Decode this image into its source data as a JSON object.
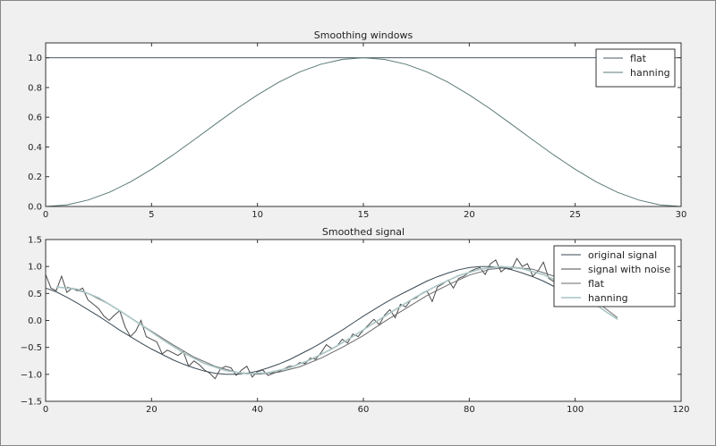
{
  "chart_data": [
    {
      "type": "line",
      "title": "Smoothing windows",
      "xlabel": "",
      "ylabel": "",
      "xlim": [
        0,
        30
      ],
      "ylim": [
        0.0,
        1.1
      ],
      "xticks": [
        0,
        5,
        10,
        15,
        20,
        25,
        30
      ],
      "xtick_labels": [
        "0",
        "5",
        "10",
        "15",
        "20",
        "25",
        "30"
      ],
      "yticks": [
        0.0,
        0.2,
        0.4,
        0.6,
        0.8,
        1.0
      ],
      "ytick_labels": [
        "0.0",
        "0.2",
        "0.4",
        "0.6",
        "0.8",
        "1.0"
      ],
      "grid": false,
      "legend_position": "top-right",
      "series": [
        {
          "name": "flat",
          "color": "#4a5a66",
          "x": [
            0,
            30
          ],
          "y": [
            1.0,
            1.0
          ]
        },
        {
          "name": "hanning",
          "color": "#5a7a78",
          "x": [
            0,
            1,
            2,
            3,
            4,
            5,
            6,
            7,
            8,
            9,
            10,
            11,
            12,
            13,
            14,
            15,
            16,
            17,
            18,
            19,
            20,
            21,
            22,
            23,
            24,
            25,
            26,
            27,
            28,
            29,
            30
          ],
          "y": [
            0.0,
            0.011,
            0.043,
            0.095,
            0.165,
            0.25,
            0.345,
            0.448,
            0.552,
            0.655,
            0.75,
            0.835,
            0.905,
            0.957,
            0.989,
            1.0,
            0.989,
            0.957,
            0.905,
            0.835,
            0.75,
            0.655,
            0.552,
            0.448,
            0.345,
            0.25,
            0.165,
            0.095,
            0.043,
            0.011,
            0.0
          ]
        }
      ]
    },
    {
      "type": "line",
      "title": "Smoothed signal",
      "xlabel": "",
      "ylabel": "",
      "xlim": [
        0,
        120
      ],
      "ylim": [
        -1.5,
        1.5
      ],
      "xticks": [
        0,
        20,
        40,
        60,
        80,
        100,
        120
      ],
      "xtick_labels": [
        "0",
        "20",
        "40",
        "60",
        "80",
        "100",
        "120"
      ],
      "yticks": [
        -1.5,
        -1.0,
        -0.5,
        0.0,
        0.5,
        1.0,
        1.5
      ],
      "ytick_labels": [
        "−1.5",
        "−1.0",
        "−0.5",
        "0.0",
        "0.5",
        "1.0",
        "1.5"
      ],
      "grid": false,
      "legend_position": "top-right",
      "series": [
        {
          "name": "original signal",
          "color": "#3a4a55",
          "x": [
            0,
            2,
            4,
            6,
            8,
            10,
            12,
            14,
            16,
            18,
            20,
            22,
            24,
            26,
            28,
            30,
            32,
            34,
            36,
            38,
            40,
            42,
            44,
            46,
            48,
            50,
            52,
            54,
            56,
            58,
            60,
            62,
            64,
            66,
            68,
            70,
            72,
            74,
            76,
            78,
            80,
            82,
            84,
            86,
            88,
            90,
            92,
            94,
            96,
            98,
            99
          ],
          "y": [
            0.6,
            0.53,
            0.43,
            0.32,
            0.2,
            0.08,
            -0.05,
            -0.18,
            -0.3,
            -0.42,
            -0.53,
            -0.63,
            -0.73,
            -0.81,
            -0.88,
            -0.94,
            -0.98,
            -1.0,
            -1.0,
            -0.98,
            -0.94,
            -0.88,
            -0.81,
            -0.73,
            -0.63,
            -0.53,
            -0.42,
            -0.3,
            -0.18,
            -0.05,
            0.08,
            0.2,
            0.32,
            0.43,
            0.53,
            0.63,
            0.73,
            0.81,
            0.88,
            0.94,
            0.98,
            1.0,
            1.0,
            0.98,
            0.94,
            0.88,
            0.81,
            0.73,
            0.63,
            0.53,
            0.47
          ]
        },
        {
          "name": "signal with noise",
          "color": "#4a4a4a",
          "x": [
            0,
            1,
            2,
            3,
            4,
            5,
            6,
            7,
            8,
            9,
            10,
            11,
            12,
            13,
            14,
            15,
            16,
            17,
            18,
            19,
            20,
            21,
            22,
            23,
            24,
            25,
            26,
            27,
            28,
            29,
            30,
            31,
            32,
            33,
            34,
            35,
            36,
            37,
            38,
            39,
            40,
            41,
            42,
            43,
            44,
            45,
            46,
            47,
            48,
            49,
            50,
            51,
            52,
            53,
            54,
            55,
            56,
            57,
            58,
            59,
            60,
            61,
            62,
            63,
            64,
            65,
            66,
            67,
            68,
            69,
            70,
            71,
            72,
            73,
            74,
            75,
            76,
            77,
            78,
            79,
            80,
            81,
            82,
            83,
            84,
            85,
            86,
            87,
            88,
            89,
            90,
            91,
            92,
            93,
            94,
            95,
            96,
            97,
            98,
            99
          ],
          "y": [
            0.85,
            0.6,
            0.55,
            0.82,
            0.52,
            0.6,
            0.55,
            0.6,
            0.38,
            0.3,
            0.22,
            0.08,
            0.0,
            0.1,
            0.18,
            -0.12,
            -0.3,
            -0.2,
            0.0,
            -0.3,
            -0.35,
            -0.4,
            -0.62,
            -0.55,
            -0.6,
            -0.65,
            -0.58,
            -0.85,
            -0.75,
            -0.82,
            -0.92,
            -0.98,
            -1.08,
            -0.9,
            -0.85,
            -0.88,
            -1.02,
            -0.92,
            -0.85,
            -1.05,
            -0.95,
            -0.92,
            -1.02,
            -0.98,
            -0.95,
            -0.9,
            -0.85,
            -0.85,
            -0.78,
            -0.8,
            -0.7,
            -0.72,
            -0.6,
            -0.45,
            -0.52,
            -0.48,
            -0.35,
            -0.42,
            -0.25,
            -0.3,
            -0.18,
            -0.08,
            0.02,
            -0.08,
            0.1,
            0.2,
            0.05,
            0.3,
            0.25,
            0.38,
            0.42,
            0.5,
            0.55,
            0.35,
            0.62,
            0.68,
            0.75,
            0.6,
            0.78,
            0.82,
            0.9,
            0.95,
            0.98,
            0.85,
            1.05,
            1.12,
            0.9,
            0.98,
            0.95,
            1.15,
            1.0,
            1.05,
            0.82,
            0.92,
            1.08,
            0.78,
            0.72,
            0.88,
            0.65,
            0.95
          ],
          "_note_truncated": false
        },
        {
          "name": "flat",
          "color": "#6a6a6a",
          "x": [
            4,
            8,
            12,
            16,
            20,
            24,
            28,
            32,
            36,
            40,
            44,
            48,
            52,
            56,
            60,
            64,
            68,
            72,
            76,
            80,
            84,
            88,
            92,
            96,
            100,
            104,
            108
          ],
          "y": [
            0.62,
            0.5,
            0.3,
            0.05,
            -0.2,
            -0.45,
            -0.68,
            -0.85,
            -0.96,
            -1.0,
            -0.96,
            -0.86,
            -0.7,
            -0.5,
            -0.28,
            -0.02,
            0.22,
            0.46,
            0.66,
            0.84,
            0.95,
            0.99,
            0.95,
            0.82,
            0.62,
            0.35,
            0.05
          ],
          "_note_truncated": false
        },
        {
          "name": "hanning",
          "color": "#a9c4c4",
          "x": [
            2,
            6,
            10,
            14,
            18,
            22,
            26,
            30,
            34,
            38,
            42,
            46,
            50,
            54,
            58,
            62,
            66,
            70,
            74,
            78,
            82,
            86,
            90,
            94,
            98,
            102,
            106,
            108
          ],
          "y": [
            0.62,
            0.58,
            0.42,
            0.18,
            -0.08,
            -0.35,
            -0.6,
            -0.8,
            -0.93,
            -0.99,
            -0.97,
            -0.88,
            -0.73,
            -0.53,
            -0.3,
            -0.05,
            0.2,
            0.44,
            0.65,
            0.83,
            0.95,
            1.0,
            0.96,
            0.85,
            0.67,
            0.42,
            0.15,
            0.02
          ],
          "_note_truncated": false
        }
      ]
    }
  ]
}
